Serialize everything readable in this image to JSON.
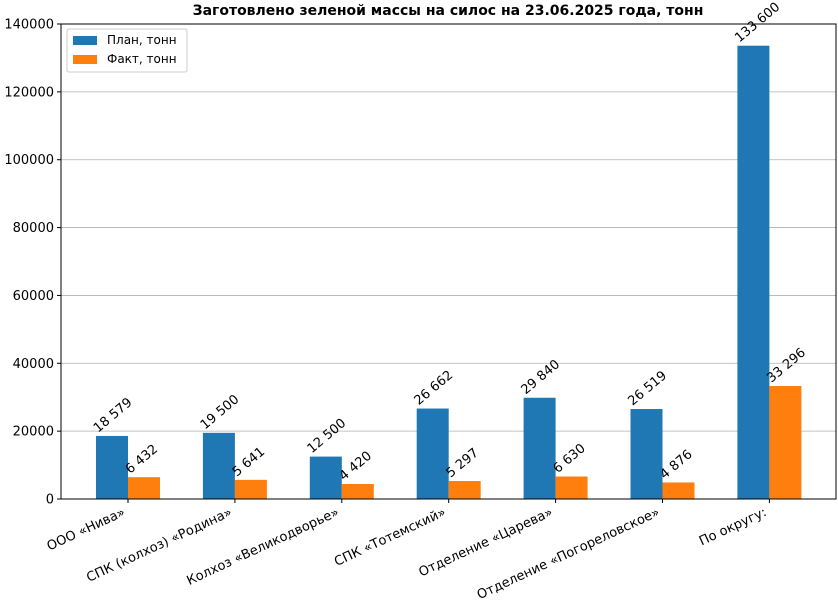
{
  "chart_data": {
    "type": "bar",
    "title": "Заготовлено зеленой массы на силос на 23.06.2025 года, тонн",
    "xlabel": "",
    "ylabel": "",
    "categories": [
      "ООО «Нива»",
      "СПК (колхоз) «Родина»",
      "Колхоз «Великодворье»",
      "СПК «Тотемский»",
      "Отделение «Царева»",
      "Отделение «Погореловское»",
      "По округу:"
    ],
    "series": [
      {
        "name": "План, тонн",
        "color": "#1f77b4",
        "values": [
          18579,
          19500,
          12500,
          26662,
          29840,
          26519,
          133600
        ],
        "labels": [
          "18 579",
          "19 500",
          "12 500",
          "26 662",
          "29 840",
          "26 519",
          "133 600"
        ]
      },
      {
        "name": "Факт, тонн",
        "color": "#ff7f0e",
        "values": [
          6432,
          5641,
          4420,
          5297,
          6630,
          4876,
          33296
        ],
        "labels": [
          "6 432",
          "5 641",
          "4 420",
          "5 297",
          "6 630",
          "4 876",
          "33 296"
        ]
      }
    ],
    "ylim": [
      0,
      140000
    ],
    "yticks": [
      0,
      20000,
      40000,
      60000,
      80000,
      100000,
      120000,
      140000
    ],
    "grid": true,
    "legend_position": "top-left"
  }
}
